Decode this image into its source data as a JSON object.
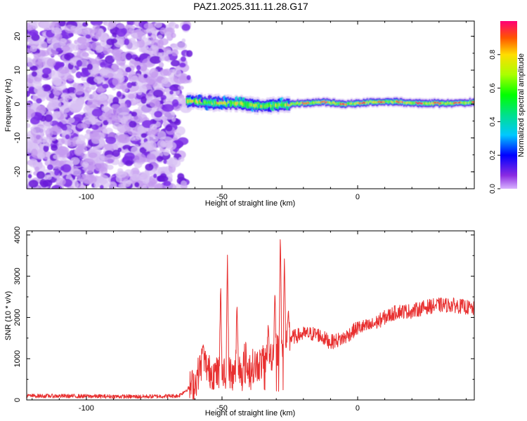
{
  "title": "PAZ1.2025.311.11.28.G17",
  "colors": {
    "snr_line": "#e83030",
    "noise_core": "#6a1ad8",
    "noise_halo": "#d8c2f4",
    "axis": "#000000"
  },
  "chart_data": [
    {
      "type": "heatmap",
      "title": "PAZ1.2025.311.11.28.G17",
      "xlabel": "Height of straight line (km)",
      "ylabel": "Frequency (Hz)",
      "xlim": [
        -122,
        43
      ],
      "ylim": [
        -25,
        24.5
      ],
      "xticks": [
        -100,
        -50,
        0
      ],
      "yticks": [
        -20,
        -10,
        0,
        10,
        20
      ],
      "colorbar": {
        "label": "Normalized spectral amplitude",
        "range": [
          0,
          1
        ],
        "ticks": [
          0.0,
          0.2,
          0.4,
          0.6,
          0.8
        ],
        "colormap": "rainbow"
      },
      "regions": [
        {
          "x_range": [
            -122,
            -62
          ],
          "description_value": "noise",
          "amplitude_range": [
            0.0,
            0.12
          ]
        },
        {
          "x_range": [
            -63,
            43
          ],
          "center_freq_hz": 0.5,
          "width_hz": 3,
          "amplitude_range": [
            0.15,
            1.0
          ]
        }
      ],
      "ridge_center_hz": [
        {
          "x": -63,
          "f": 1.0
        },
        {
          "x": -55,
          "f": 0.4
        },
        {
          "x": -45,
          "f": 0.3
        },
        {
          "x": -35,
          "f": -0.6
        },
        {
          "x": -28,
          "f": -0.2
        },
        {
          "x": -20,
          "f": 0.3
        },
        {
          "x": -12,
          "f": 0.6
        },
        {
          "x": -5,
          "f": -0.1
        },
        {
          "x": 5,
          "f": 0.6
        },
        {
          "x": 15,
          "f": 0.6
        },
        {
          "x": 25,
          "f": 0.2
        },
        {
          "x": 35,
          "f": 0.3
        },
        {
          "x": 43,
          "f": 0.5
        }
      ]
    },
    {
      "type": "line",
      "xlabel": "Height of straight line (km)",
      "ylabel": "SNR (10 * v/v)",
      "xlim": [
        -122,
        43
      ],
      "ylim": [
        0,
        4100
      ],
      "xticks": [
        -100,
        -50,
        0
      ],
      "yticks": [
        0,
        1000,
        2000,
        3000,
        4000
      ],
      "series": [
        {
          "name": "SNR",
          "profile": [
            {
              "x": -122,
              "y": 100
            },
            {
              "x": -100,
              "y": 90
            },
            {
              "x": -80,
              "y": 80
            },
            {
              "x": -66,
              "y": 100
            },
            {
              "x": -60,
              "y": 400
            },
            {
              "x": -57,
              "y": 1000
            },
            {
              "x": -55,
              "y": 700
            },
            {
              "x": -50,
              "y": 600
            },
            {
              "x": -40,
              "y": 800
            },
            {
              "x": -35,
              "y": 900
            },
            {
              "x": -30,
              "y": 1200
            },
            {
              "x": -25,
              "y": 1500
            },
            {
              "x": -20,
              "y": 1600
            },
            {
              "x": -15,
              "y": 1600
            },
            {
              "x": -10,
              "y": 1400
            },
            {
              "x": -5,
              "y": 1500
            },
            {
              "x": 0,
              "y": 1750
            },
            {
              "x": 5,
              "y": 1800
            },
            {
              "x": 10,
              "y": 2000
            },
            {
              "x": 15,
              "y": 2150
            },
            {
              "x": 20,
              "y": 2150
            },
            {
              "x": 25,
              "y": 2250
            },
            {
              "x": 30,
              "y": 2300
            },
            {
              "x": 35,
              "y": 2300
            },
            {
              "x": 40,
              "y": 2250
            },
            {
              "x": 43,
              "y": 2200
            }
          ],
          "peaks": [
            {
              "x": -57,
              "y": 1350
            },
            {
              "x": -50.5,
              "y": 2900
            },
            {
              "x": -48,
              "y": 3600
            },
            {
              "x": -44.5,
              "y": 2400
            },
            {
              "x": -41.5,
              "y": 1800
            },
            {
              "x": -33,
              "y": 1850
            },
            {
              "x": -30.5,
              "y": 2700
            },
            {
              "x": -28.5,
              "y": 4100
            },
            {
              "x": -27,
              "y": 3450
            },
            {
              "x": -25.5,
              "y": 2200
            }
          ]
        }
      ]
    }
  ]
}
